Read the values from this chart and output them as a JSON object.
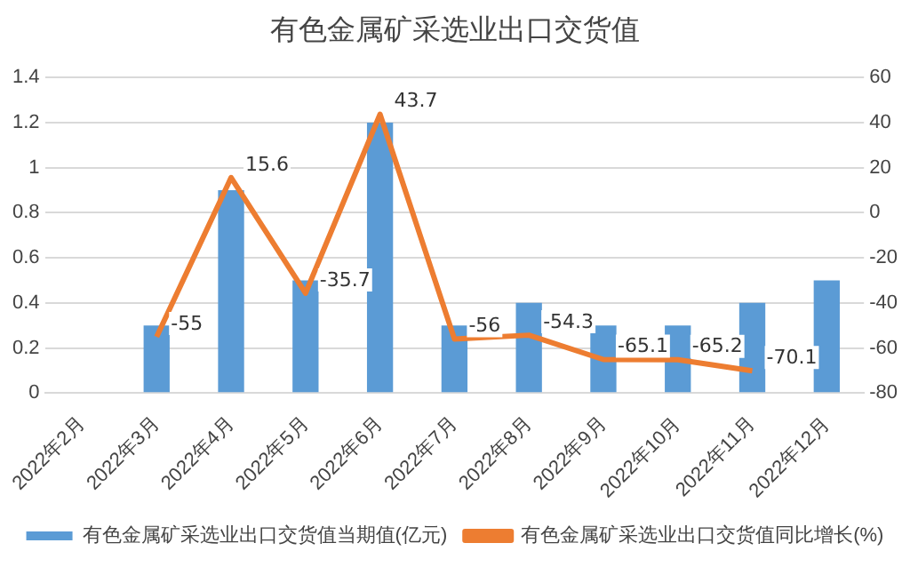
{
  "chart_data": {
    "type": "bar",
    "title": "有色金属矿采选业出口交货值",
    "categories": [
      "2022年2月",
      "2022年3月",
      "2022年4月",
      "2022年5月",
      "2022年6月",
      "2022年7月",
      "2022年8月",
      "2022年9月",
      "2022年10月",
      "2022年11月",
      "2022年12月"
    ],
    "series": [
      {
        "name": "有色金属矿采选业出口交货值当期值(亿元)",
        "color": "#5b9bd5",
        "values": [
          null,
          0.3,
          0.9,
          0.5,
          1.2,
          0.3,
          0.4,
          0.3,
          0.3,
          0.4,
          0.5
        ]
      },
      {
        "name": "有色金属矿采选业出口交货值同比增长(%)",
        "type": "line",
        "axis": "y2",
        "color": "#ed7d31",
        "values": [
          null,
          -55,
          15.6,
          -35.7,
          43.7,
          -56,
          -54.3,
          -65.1,
          -65.2,
          -70.1,
          null
        ],
        "value_labels": [
          null,
          "-55",
          "15.6",
          "-35.7",
          "43.7",
          "-56",
          "-54.3",
          "-65.1",
          "-65.2",
          "-70.1",
          null
        ]
      }
    ],
    "ylim": [
      0,
      1.4
    ],
    "yticks": [
      0,
      0.2,
      0.4,
      0.6,
      0.8,
      1,
      1.2,
      1.4
    ],
    "y2lim": [
      -80,
      60
    ],
    "y2ticks": [
      -80,
      -60,
      -40,
      -20,
      0,
      20,
      40,
      60
    ],
    "grid": "y",
    "legend": "bottom",
    "marker": "none",
    "line_style": "solid"
  }
}
